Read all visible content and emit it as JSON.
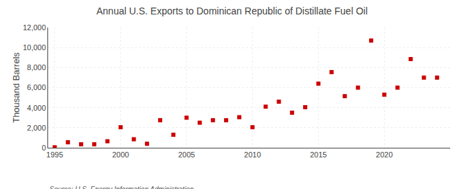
{
  "chart_data": {
    "type": "scatter",
    "title": "Annual U.S. Exports to Dominican Republic of Distillate Fuel Oil",
    "ylabel": "Thousand Barrels",
    "source": "Source: U.S. Energy Information Administration",
    "x": [
      1995,
      1996,
      1997,
      1998,
      1999,
      2000,
      2001,
      2002,
      2003,
      2004,
      2005,
      2006,
      2007,
      2008,
      2009,
      2010,
      2011,
      2012,
      2013,
      2014,
      2015,
      2016,
      2017,
      2018,
      2019,
      2020,
      2021,
      2022,
      2023,
      2024
    ],
    "values": [
      50,
      550,
      350,
      350,
      650,
      2050,
      850,
      400,
      2750,
      1300,
      3000,
      2500,
      2750,
      2750,
      3050,
      2050,
      4100,
      4600,
      3500,
      4050,
      6400,
      7550,
      5150,
      6000,
      10700,
      5300,
      6000,
      8850,
      7000,
      7000
    ],
    "color": "#cc0000",
    "marker": "square",
    "xlim": [
      1994.5,
      2025
    ],
    "xticks": [
      1995,
      2000,
      2005,
      2010,
      2015,
      2020
    ],
    "ylim": [
      0,
      12000
    ],
    "yticks": [
      0,
      {
        "value": 2000,
        "label": "2,000"
      },
      {
        "value": 4000,
        "label": "4,000"
      },
      {
        "value": 6000,
        "label": "6,000"
      },
      {
        "value": 8000,
        "label": "8,000"
      },
      {
        "value": 10000,
        "label": "10,000"
      },
      {
        "value": 12000,
        "label": "12,000"
      }
    ],
    "grid": true
  }
}
